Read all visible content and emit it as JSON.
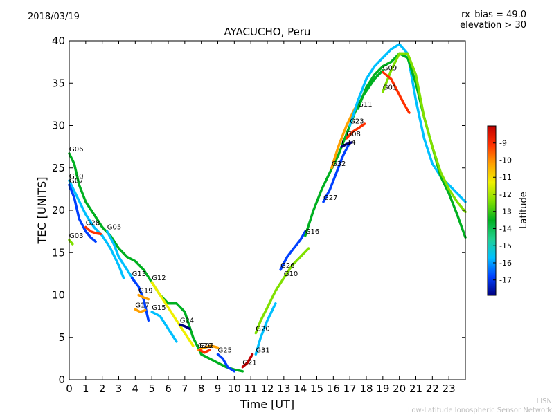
{
  "header": {
    "date": "2018/03/19",
    "rx_bias": "rx_bias = 49.0",
    "elevation": "elevation > 30"
  },
  "footer": {
    "line1": "LISN",
    "line2": "Low-Latitude Ionospheric Sensor Network"
  },
  "chart_data": {
    "type": "line",
    "title": "AYACUCHO, Peru",
    "xlabel": "Time [UT]",
    "ylabel": "TEC [UNITS]",
    "xlim": [
      0,
      24
    ],
    "ylim": [
      0,
      40
    ],
    "xticks": [
      "0",
      "1",
      "2",
      "3",
      "4",
      "5",
      "6",
      "7",
      "8",
      "9",
      "10",
      "11",
      "12",
      "13",
      "14",
      "15",
      "16",
      "17",
      "18",
      "19",
      "20",
      "21",
      "22",
      "23"
    ],
    "yticks": [
      "0",
      "5",
      "10",
      "15",
      "20",
      "25",
      "30",
      "35",
      "40"
    ],
    "grid": false,
    "colorbar": {
      "label": "Latitude",
      "range": [
        -17.9,
        -8.0
      ],
      "ticks": [
        "-9",
        "-10",
        "-11",
        "-12",
        "-13",
        "-14",
        "-15",
        "-16",
        "-17"
      ],
      "colors": [
        "#00007f",
        "#0040ff",
        "#00c0ff",
        "#20d090",
        "#00b020",
        "#80e000",
        "#f0f000",
        "#ffa000",
        "#ff3000",
        "#c00000"
      ]
    },
    "series": [
      {
        "name": "G06",
        "color": "#00b020",
        "x": [
          0.0,
          0.3,
          0.6,
          1.0,
          1.5,
          2.0,
          2.5,
          3.0,
          3.5,
          4.0,
          4.5,
          5.0,
          5.5,
          6.0,
          6.5,
          7.0,
          7.5,
          8.0,
          8.5,
          9.0,
          9.5,
          10.0,
          10.5
        ],
        "y": [
          26.7,
          25.5,
          23.0,
          21.0,
          19.5,
          18.0,
          17.0,
          15.5,
          14.5,
          14.0,
          13.0,
          11.5,
          10.0,
          9.0,
          9.0,
          8.0,
          5.0,
          3.0,
          2.5,
          2.0,
          1.5,
          1.2,
          1.0
        ]
      },
      {
        "name": "G30",
        "color": "#00c0ff",
        "x": [
          0.0,
          0.5,
          1.0,
          1.5,
          2.0,
          2.5,
          3.0,
          3.3
        ],
        "y": [
          23.5,
          21.5,
          19.5,
          18.0,
          17.0,
          15.5,
          13.5,
          12.0
        ]
      },
      {
        "name": "G07",
        "color": "#0040ff",
        "x": [
          0.0,
          0.3,
          0.6,
          1.0,
          1.3,
          1.6
        ],
        "y": [
          23.0,
          21.5,
          19.0,
          17.5,
          16.8,
          16.3
        ]
      },
      {
        "name": "G03",
        "color": "#80e000",
        "x": [
          0.0,
          0.2
        ],
        "y": [
          16.5,
          16.0
        ]
      },
      {
        "name": "G28",
        "color": "#ff3000",
        "x": [
          1.0,
          1.3,
          1.6,
          1.9
        ],
        "y": [
          18.0,
          17.5,
          17.3,
          17.2
        ]
      },
      {
        "name": "G05",
        "color": "#00c0ff",
        "x": [
          2.3,
          2.7,
          3.0,
          3.5,
          4.0
        ],
        "y": [
          17.5,
          16.0,
          14.5,
          13.0,
          11.5
        ]
      },
      {
        "name": "G13",
        "color": "#0040ff",
        "x": [
          3.8,
          4.2,
          4.5,
          4.8
        ],
        "y": [
          12.0,
          11.0,
          9.5,
          7.0
        ]
      },
      {
        "name": "G12",
        "color": "#f0f000",
        "x": [
          5.0,
          5.5,
          6.0,
          6.5,
          7.0,
          7.5
        ],
        "y": [
          11.5,
          10.0,
          8.5,
          7.0,
          5.5,
          4.0
        ]
      },
      {
        "name": "G19",
        "color": "#ffa000",
        "x": [
          4.2,
          4.5,
          4.8
        ],
        "y": [
          10.0,
          9.7,
          9.5
        ]
      },
      {
        "name": "G17",
        "color": "#ffa000",
        "x": [
          4.0,
          4.3,
          4.6
        ],
        "y": [
          8.3,
          8.0,
          8.2
        ]
      },
      {
        "name": "G15",
        "color": "#00c0ff",
        "x": [
          5.0,
          5.5,
          6.0,
          6.5
        ],
        "y": [
          8.0,
          7.5,
          6.0,
          4.5
        ]
      },
      {
        "name": "G24",
        "color": "#00007f",
        "x": [
          6.7,
          7.0,
          7.3
        ],
        "y": [
          6.5,
          6.3,
          6.0
        ]
      },
      {
        "name": "G29",
        "color": "#ffa000",
        "x": [
          7.8,
          8.2,
          8.6,
          9.0
        ],
        "y": [
          3.5,
          3.8,
          4.0,
          3.8
        ]
      },
      {
        "name": "G02",
        "color": "#ff3000",
        "x": [
          7.9,
          8.2,
          8.5
        ],
        "y": [
          3.5,
          3.2,
          3.5
        ]
      },
      {
        "name": "G25",
        "color": "#0040ff",
        "x": [
          9.0,
          9.3,
          9.6,
          10.0
        ],
        "y": [
          3.0,
          2.5,
          1.5,
          1.0
        ]
      },
      {
        "name": "G21",
        "color": "#c00000",
        "x": [
          10.5,
          10.8,
          11.1
        ],
        "y": [
          1.5,
          2.0,
          3.0
        ]
      },
      {
        "name": "G20",
        "color": "#80e000",
        "x": [
          11.3,
          11.6,
          12.0,
          12.5,
          13.0
        ],
        "y": [
          5.5,
          7.0,
          8.5,
          10.5,
          12.0
        ]
      },
      {
        "name": "G31",
        "color": "#00c0ff",
        "x": [
          11.3,
          11.6,
          12.0,
          12.5
        ],
        "y": [
          3.0,
          5.0,
          7.0,
          9.0
        ]
      },
      {
        "name": "G26",
        "color": "#0040ff",
        "x": [
          12.8,
          13.2,
          13.6,
          14.0,
          14.3
        ],
        "y": [
          13.0,
          14.5,
          15.5,
          16.5,
          17.5
        ]
      },
      {
        "name": "G10",
        "color": "#80e000",
        "x": [
          13.0,
          13.5,
          14.0,
          14.5
        ],
        "y": [
          12.0,
          13.5,
          14.5,
          15.5
        ]
      },
      {
        "name": "G16",
        "color": "#00b020",
        "x": [
          14.3,
          14.8,
          15.3,
          15.8,
          16.3,
          16.8,
          17.3,
          17.8,
          18.5,
          19.0
        ],
        "y": [
          17.0,
          20.0,
          22.5,
          24.5,
          26.5,
          29.0,
          31.5,
          33.5,
          35.5,
          36.5
        ]
      },
      {
        "name": "G27",
        "color": "#0040ff",
        "x": [
          15.4,
          15.8,
          16.2,
          16.6,
          17.0
        ],
        "y": [
          21.0,
          22.5,
          24.5,
          26.5,
          28.0
        ]
      },
      {
        "name": "G32",
        "color": "#ffa000",
        "x": [
          15.9,
          16.3,
          16.8,
          17.3
        ],
        "y": [
          25.0,
          27.5,
          30.0,
          32.0
        ]
      },
      {
        "name": "G14",
        "color": "#00007f",
        "x": [
          16.5,
          16.8,
          17.1
        ],
        "y": [
          27.5,
          27.8,
          28.0
        ]
      },
      {
        "name": "G08",
        "color": "#ff3000",
        "x": [
          16.8,
          17.2,
          17.6,
          17.9
        ],
        "y": [
          28.5,
          29.3,
          29.8,
          30.2
        ]
      },
      {
        "name": "G23",
        "color": "#00c0ff",
        "x": [
          17.0,
          17.5,
          18.0,
          18.5,
          19.0,
          19.5,
          20.0,
          20.5,
          21.0,
          21.5,
          22.0,
          22.5,
          23.0,
          23.5,
          24.0
        ],
        "y": [
          30.0,
          33.0,
          35.5,
          37.0,
          38.0,
          39.0,
          39.6,
          38.5,
          33.0,
          28.5,
          25.5,
          24.0,
          23.0,
          22.0,
          21.0
        ]
      },
      {
        "name": "G11",
        "color": "#00b020",
        "x": [
          17.5,
          18.0,
          18.5,
          19.0,
          19.5,
          20.0,
          20.5,
          21.0,
          21.5,
          22.0,
          22.5,
          23.0,
          23.5,
          24.0
        ],
        "y": [
          32.0,
          34.5,
          36.0,
          37.0,
          37.5,
          38.5,
          38.0,
          35.0,
          31.0,
          27.5,
          24.0,
          22.0,
          19.5,
          16.8
        ]
      },
      {
        "name": "G01",
        "color": "#80e000",
        "x": [
          19.0,
          19.5,
          20.0,
          20.5,
          21.0,
          21.5,
          22.0,
          22.5,
          23.0,
          23.5,
          24.0
        ],
        "y": [
          34.0,
          36.5,
          38.5,
          38.5,
          36.0,
          31.0,
          27.5,
          24.5,
          22.5,
          21.0,
          19.8
        ]
      },
      {
        "name": "G09",
        "color": "#ff3000",
        "x": [
          19.0,
          19.5,
          19.9,
          20.3,
          20.6
        ],
        "y": [
          36.3,
          35.5,
          34.0,
          32.5,
          31.5
        ]
      }
    ]
  }
}
